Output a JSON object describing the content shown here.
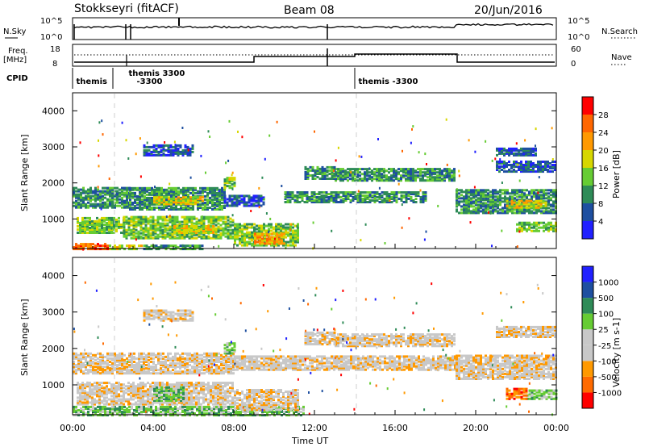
{
  "header": {
    "title": "Stokkseyri (fitACF)",
    "beam": "Beam 08",
    "date": "20/Jun/2016"
  },
  "panel_labels": {
    "nsky": "N.Sky",
    "nsearch": "N.Search",
    "freq": "Freq.",
    "freq_unit": "[MHz]",
    "nave": "Nave",
    "cpid": "CPID"
  },
  "nsky_ticks": {
    "left": [
      "10^5",
      "10^0"
    ],
    "right": [
      "10^5",
      "10^0"
    ]
  },
  "freq_ticks": {
    "left": [
      "18",
      "8"
    ],
    "right": [
      "60",
      "0"
    ]
  },
  "cpid_labels": [
    {
      "text": "themis",
      "t": 0.1
    },
    {
      "text": "themis 3300",
      "t": 2.7
    },
    {
      "text": "-3300",
      "t": 3.1
    },
    {
      "text": "themis -3300",
      "t": 14.1
    }
  ],
  "chart_data": [
    {
      "type": "heatmap",
      "quantity": "Power",
      "ylabel": "Slant Range [km]",
      "xlabel": "",
      "xlim": [
        0,
        24
      ],
      "ylim": [
        180,
        4500
      ],
      "yticks": [
        1000,
        2000,
        3000,
        4000
      ],
      "colorbar": {
        "label": "Power [dB]",
        "ticks": [
          "4",
          "8",
          "12",
          "16",
          "20",
          "24",
          "28"
        ]
      },
      "regions": [
        {
          "t0": 0.0,
          "t1": 1.8,
          "r0": 200,
          "r1": 380,
          "level": 6
        },
        {
          "t0": 1.8,
          "t1": 3.5,
          "r0": 200,
          "r1": 300,
          "level": 4
        },
        {
          "t0": 3.5,
          "t1": 6.5,
          "r0": 200,
          "r1": 300,
          "level": 2
        },
        {
          "t0": 0.2,
          "t1": 2.5,
          "r0": 650,
          "r1": 1100,
          "level": 3
        },
        {
          "t0": 2.5,
          "t1": 8.0,
          "r0": 500,
          "r1": 1100,
          "level": 3
        },
        {
          "t0": 5.0,
          "t1": 7.0,
          "r0": 650,
          "r1": 850,
          "level": 4
        },
        {
          "t0": 8.0,
          "t1": 11.2,
          "r0": 300,
          "r1": 900,
          "level": 3
        },
        {
          "t0": 9.0,
          "t1": 10.5,
          "r0": 350,
          "r1": 650,
          "level": 5
        },
        {
          "t0": 0.0,
          "t1": 2.8,
          "r0": 1350,
          "r1": 1900,
          "level": 2
        },
        {
          "t0": 2.8,
          "t1": 7.5,
          "r0": 1300,
          "r1": 1900,
          "level": 2
        },
        {
          "t0": 4.0,
          "t1": 6.5,
          "r0": 1450,
          "r1": 1650,
          "level": 4
        },
        {
          "t0": 7.5,
          "t1": 9.5,
          "r0": 1400,
          "r1": 1700,
          "level": 1
        },
        {
          "t0": 10.5,
          "t1": 17.5,
          "r0": 1500,
          "r1": 1800,
          "level": 2
        },
        {
          "t0": 13.0,
          "t1": 19.0,
          "r0": 2100,
          "r1": 2450,
          "level": 2
        },
        {
          "t0": 11.5,
          "t1": 13.0,
          "r0": 2150,
          "r1": 2500,
          "level": 2
        },
        {
          "t0": 19.0,
          "t1": 24.0,
          "r0": 1200,
          "r1": 1850,
          "level": 2
        },
        {
          "t0": 21.5,
          "t1": 23.5,
          "r0": 1350,
          "r1": 1550,
          "level": 4
        },
        {
          "t0": 22.0,
          "t1": 24.0,
          "r0": 700,
          "r1": 950,
          "level": 3
        },
        {
          "t0": 21.0,
          "t1": 24.0,
          "r0": 2350,
          "r1": 2650,
          "level": 1
        },
        {
          "t0": 21.0,
          "t1": 23.0,
          "r0": 2800,
          "r1": 3000,
          "level": 1
        },
        {
          "t0": 3.5,
          "t1": 6.0,
          "r0": 2800,
          "r1": 3100,
          "level": 1
        },
        {
          "t0": 7.5,
          "t1": 8.0,
          "r0": 1900,
          "r1": 2200,
          "level": 3
        }
      ]
    },
    {
      "type": "heatmap",
      "quantity": "Velocity",
      "ylabel": "Slant Range [km]",
      "xlabel": "Time UT",
      "xlim": [
        0,
        24
      ],
      "ylim": [
        180,
        4500
      ],
      "yticks": [
        1000,
        2000,
        3000,
        4000
      ],
      "xticks": [
        "00:00",
        "04:00",
        "08:00",
        "12:00",
        "16:00",
        "20:00",
        "00:00"
      ],
      "colorbar": {
        "label": "Velocity [m s-1]",
        "ticks": [
          "1000",
          "500",
          "100",
          "25",
          "-25",
          "-100",
          "-500",
          "-1000"
        ]
      },
      "regions": [
        {
          "t0": 0.0,
          "t1": 11.5,
          "r0": 200,
          "r1": 450,
          "level": 5
        },
        {
          "t0": 0.2,
          "t1": 8.0,
          "r0": 500,
          "r1": 1100,
          "level": 3
        },
        {
          "t0": 4.0,
          "t1": 5.5,
          "r0": 600,
          "r1": 1000,
          "level": 5
        },
        {
          "t0": 8.0,
          "t1": 11.2,
          "r0": 350,
          "r1": 900,
          "level": 3
        },
        {
          "t0": 0.0,
          "t1": 8.0,
          "r0": 1350,
          "r1": 1900,
          "level": 3
        },
        {
          "t0": 8.0,
          "t1": 19.0,
          "r0": 1450,
          "r1": 1850,
          "level": 3
        },
        {
          "t0": 13.0,
          "t1": 19.0,
          "r0": 2100,
          "r1": 2450,
          "level": 3
        },
        {
          "t0": 11.5,
          "t1": 13.0,
          "r0": 2150,
          "r1": 2500,
          "level": 3
        },
        {
          "t0": 19.0,
          "t1": 24.0,
          "r0": 1200,
          "r1": 1850,
          "level": 3
        },
        {
          "t0": 21.0,
          "t1": 24.0,
          "r0": 2350,
          "r1": 2650,
          "level": 3
        },
        {
          "t0": 22.5,
          "t1": 24.0,
          "r0": 650,
          "r1": 900,
          "level": 5
        },
        {
          "t0": 21.5,
          "t1": 22.5,
          "r0": 650,
          "r1": 950,
          "level": 1
        },
        {
          "t0": 3.5,
          "t1": 6.0,
          "r0": 2800,
          "r1": 3100,
          "level": 3
        },
        {
          "t0": 7.5,
          "t1": 8.0,
          "r0": 1900,
          "r1": 2200,
          "level": 5
        }
      ]
    }
  ],
  "colors": {
    "power_scale": [
      "#2020ff",
      "#1e4fa0",
      "#2e8b57",
      "#66cc33",
      "#d7d700",
      "#ff9900",
      "#ff6600",
      "#ff0000"
    ],
    "velocity_scale": [
      "#ff0000",
      "#ff6a00",
      "#ff9900",
      "#c8c8c8",
      "#c8c8c8",
      "#66cc33",
      "#2e8b57",
      "#1e4fa0",
      "#2020ff"
    ]
  }
}
